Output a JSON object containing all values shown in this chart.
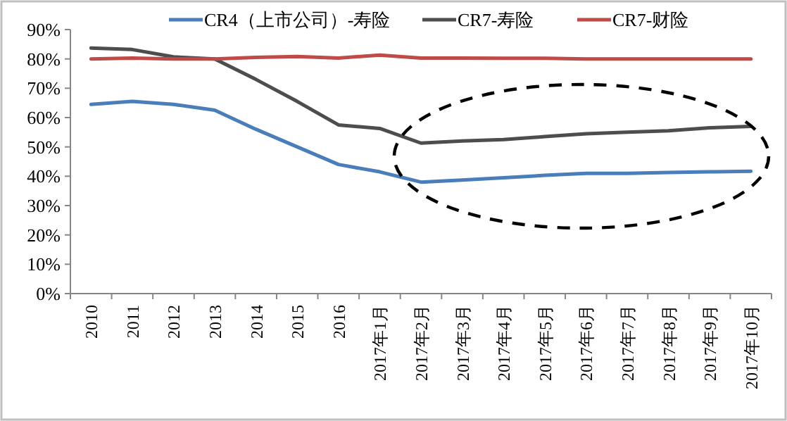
{
  "chart_data": {
    "type": "line",
    "categories": [
      "2010",
      "2011",
      "2012",
      "2013",
      "2014",
      "2015",
      "2016",
      "2017年1月",
      "2017年2月",
      "2017年3月",
      "2017年4月",
      "2017年5月",
      "2017年6月",
      "2017年7月",
      "2017年8月",
      "2017年9月",
      "2017年10月"
    ],
    "series": [
      {
        "name": "CR4（上市公司）-寿险",
        "color": "#4a7ebb",
        "values": [
          64.5,
          65.5,
          64.5,
          62.5,
          56,
          50,
          44,
          41.5,
          38,
          38.7,
          39.5,
          40.3,
          41,
          41,
          41.3,
          41.5,
          41.7
        ]
      },
      {
        "name": "CR7-寿险",
        "color": "#4d4d4d",
        "values": [
          83.7,
          83.2,
          80.7,
          80,
          73,
          65.5,
          57.5,
          56.3,
          51.3,
          52,
          52.5,
          53.5,
          54.5,
          55,
          55.5,
          56.5,
          57
        ]
      },
      {
        "name": "CR7-财险",
        "color": "#be4b48",
        "values": [
          80,
          80.3,
          80,
          80,
          80.5,
          80.8,
          80.3,
          81.3,
          80.3,
          80.3,
          80.2,
          80.2,
          80,
          80,
          80,
          80,
          80
        ]
      }
    ],
    "ylim": [
      0,
      90
    ],
    "yticks": [
      {
        "value": 0,
        "label": "0%"
      },
      {
        "value": 10,
        "label": "10%"
      },
      {
        "value": 20,
        "label": "20%"
      },
      {
        "value": 30,
        "label": "30%"
      },
      {
        "value": 40,
        "label": "40%"
      },
      {
        "value": 50,
        "label": "50%"
      },
      {
        "value": 60,
        "label": "60%"
      },
      {
        "value": 70,
        "label": "70%"
      },
      {
        "value": 80,
        "label": "80%"
      },
      {
        "value": 90,
        "label": "90%"
      }
    ],
    "legend": "top",
    "grid": false,
    "marker": "none",
    "line_style": "solid"
  }
}
